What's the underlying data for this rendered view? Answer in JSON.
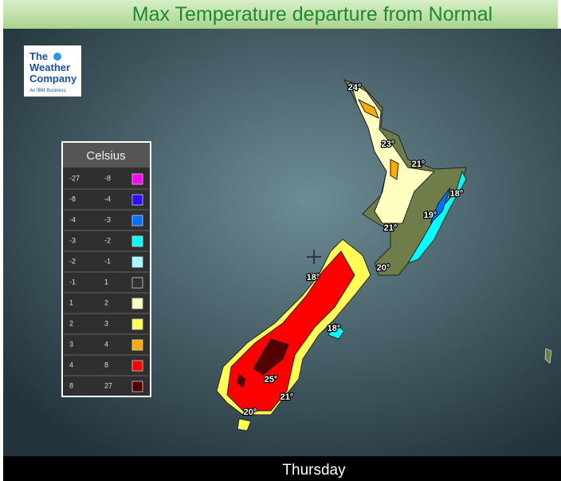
{
  "header": {
    "title": "Max Temperature departure from Normal"
  },
  "logo": {
    "line1": "The",
    "line2": "Weather",
    "line3": "Company",
    "tagline": "An IBM Business"
  },
  "legend": {
    "title": "Celsius",
    "rows": [
      {
        "low": -27,
        "high": -8,
        "color": "#ff00ff"
      },
      {
        "low": -8,
        "high": -4,
        "color": "#2a10ff"
      },
      {
        "low": -4,
        "high": -3,
        "color": "#0070ff"
      },
      {
        "low": -3,
        "high": -2,
        "color": "#00ffff"
      },
      {
        "low": -2,
        "high": -1,
        "color": "#a0ffff"
      },
      {
        "low": -1,
        "high": 1,
        "color": "#333333"
      },
      {
        "low": 1,
        "high": 2,
        "color": "#ffffc0"
      },
      {
        "low": 2,
        "high": 3,
        "color": "#ffff55"
      },
      {
        "low": 3,
        "high": 4,
        "color": "#ffaa00"
      },
      {
        "low": 4,
        "high": 8,
        "color": "#ff0000"
      },
      {
        "low": 8,
        "high": 27,
        "color": "#550000"
      }
    ]
  },
  "map": {
    "labels": [
      "24°",
      "23°",
      "21°",
      "18°",
      "19°",
      "21°",
      "20°",
      "18°",
      "18°",
      "25°",
      "21°",
      "20°"
    ]
  },
  "footer": {
    "day": "Thursday"
  }
}
